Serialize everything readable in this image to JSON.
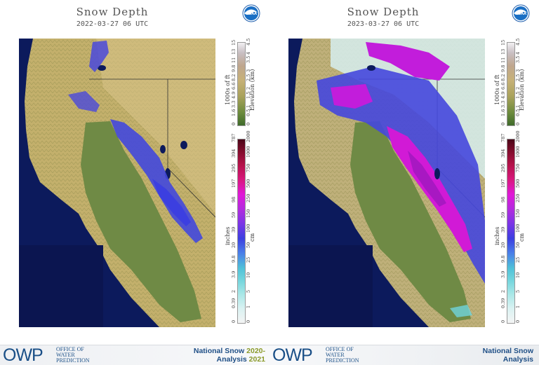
{
  "panels": [
    {
      "title": "Snow Depth",
      "date": "2022-03-27 06 UTC",
      "noaa_logo": "NOAA",
      "elevation_label": "Elevation (km)",
      "elevation_ft_label": "1000s of ft",
      "elev_ft_ticks": [
        "0",
        "1.6",
        "3.3",
        "4.9",
        "6.6",
        "8.2",
        "9.8",
        "11",
        "13",
        "15"
      ],
      "elev_km_ticks": [
        "0",
        "0.5",
        "1",
        "1.5",
        "2",
        "2.5",
        "3",
        "3.5",
        "4",
        "4.5"
      ],
      "snow_in_label": "inches",
      "snow_cm_label": "cm",
      "snow_in_ticks": [
        "0",
        "0.39",
        "2",
        "3.9",
        "9.8",
        "20",
        "39",
        "59",
        "98",
        "197",
        "295",
        "394",
        "787"
      ],
      "snow_cm_ticks": [
        "0",
        "1",
        "5",
        "10",
        "25",
        "50",
        "100",
        "150",
        "250",
        "500",
        "750",
        "1000",
        "2000"
      ]
    },
    {
      "title": "Snow Depth",
      "date": "2023-03-27 06 UTC",
      "noaa_logo": "NOAA",
      "elevation_label": "Elevation (km)",
      "elevation_ft_label": "1000s of ft",
      "elev_ft_ticks": [
        "0",
        "1.6",
        "3.3",
        "4.9",
        "6.6",
        "8.2",
        "9.8",
        "11",
        "13",
        "15"
      ],
      "elev_km_ticks": [
        "0",
        "0.5",
        "1",
        "1.5",
        "2",
        "2.5",
        "3",
        "3.5",
        "4",
        "4.5"
      ],
      "snow_in_label": "inches",
      "snow_cm_label": "cm",
      "snow_in_ticks": [
        "0",
        "0.39",
        "2",
        "3.9",
        "9.8",
        "20",
        "39",
        "59",
        "98",
        "197",
        "295",
        "394",
        "787"
      ],
      "snow_cm_ticks": [
        "0",
        "1",
        "5",
        "10",
        "25",
        "50",
        "100",
        "150",
        "250",
        "500",
        "750",
        "1000",
        "2000"
      ]
    }
  ],
  "footer": [
    {
      "owp": "OWP",
      "owp_line1": "OFFICE OF",
      "owp_line2": "WATER",
      "owp_line3": "PREDICTION",
      "nsa_line1": "National Snow",
      "nsa_year1": "2020-",
      "nsa_line2": "Analysis",
      "nsa_year2": "2021"
    },
    {
      "owp": "OWP",
      "owp_line1": "OFFICE OF",
      "owp_line2": "WATER",
      "owp_line3": "PREDICTION",
      "nsa_line1": "National Snow",
      "nsa_line2": "Analysis"
    }
  ],
  "colors": {
    "ocean": "#0c1a5c",
    "valley": "#6f8a45",
    "foothills": "#b5a866",
    "snow_light": "#3f46d8",
    "snow_deep": "#c21ddb"
  }
}
